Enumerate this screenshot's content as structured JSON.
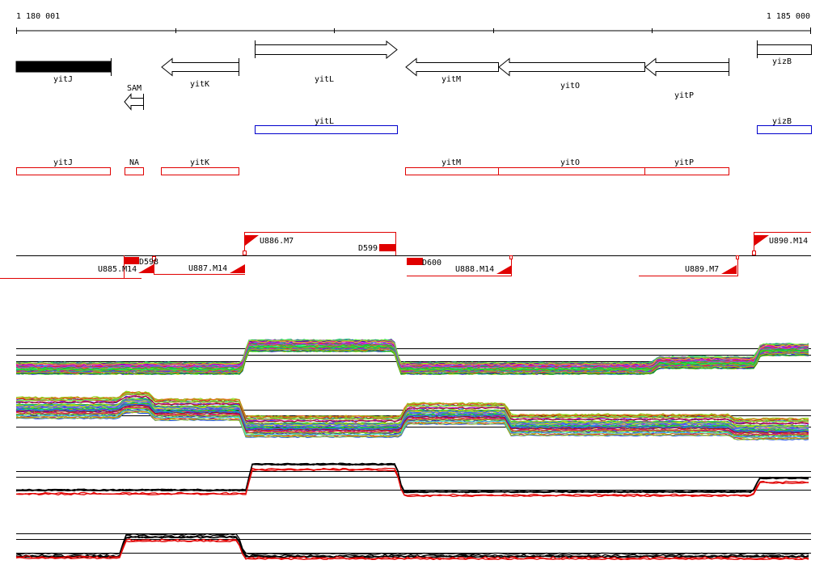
{
  "ruler": {
    "start_label": "1 180 001",
    "end_label": "1 185 000"
  },
  "genes": [
    {
      "name": "yitJ",
      "strand": "none",
      "style": "filled"
    },
    {
      "name": "yitK",
      "strand": "-"
    },
    {
      "name": "yitL",
      "strand": "+"
    },
    {
      "name": "yitM",
      "strand": "-"
    },
    {
      "name": "yitO",
      "strand": "-"
    },
    {
      "name": "yitP",
      "strand": "-"
    },
    {
      "name": "yizB",
      "strand": "none"
    }
  ],
  "sam_feature": {
    "name": "SAM",
    "strand": "-"
  },
  "blue_track": [
    {
      "name": "yitL"
    },
    {
      "name": "yizB"
    }
  ],
  "red_track": [
    {
      "name": "yitJ"
    },
    {
      "name": "NA"
    },
    {
      "name": "yitK"
    },
    {
      "name": "yitM"
    },
    {
      "name": "yitO"
    },
    {
      "name": "yitP"
    }
  ],
  "transcripts": [
    {
      "name": "U885.M14"
    },
    {
      "name": "D598"
    },
    {
      "name": "U887.M14"
    },
    {
      "name": "U886.M7"
    },
    {
      "name": "D599"
    },
    {
      "name": "D600"
    },
    {
      "name": "U888.M14"
    },
    {
      "name": "U889.M7"
    },
    {
      "name": "U890.M14"
    }
  ],
  "colors": {
    "gene_outline": "#000000",
    "blue_track": "#0000cc",
    "red_track": "#e00000",
    "highlight_line": "#e00000",
    "axis": "#000000"
  },
  "expression_tracks": [
    {
      "id": "expression-panel-1",
      "series": "multicolor"
    },
    {
      "id": "expression-panel-2",
      "series": "multicolor"
    },
    {
      "id": "expression-panel-3",
      "series": "black-red"
    },
    {
      "id": "expression-panel-4",
      "series": "black-red"
    }
  ]
}
